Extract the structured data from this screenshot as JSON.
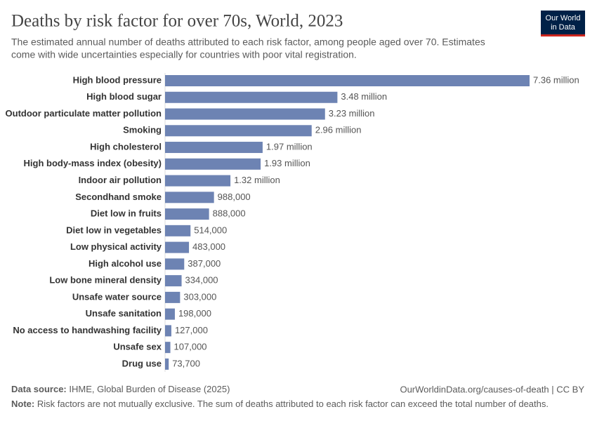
{
  "chart_data": {
    "type": "bar",
    "orientation": "horizontal",
    "title": "Deaths by risk factor for over 70s, World, 2023",
    "subtitle_lines": [
      "The estimated annual number of deaths attributed to each risk factor, among people aged over 70. Estimates",
      "come with wide uncertainties especially for countries with poor vital registration."
    ],
    "logo_lines": [
      "Our World",
      "in Data"
    ],
    "categories": [
      "High blood pressure",
      "High blood sugar",
      "Outdoor particulate matter pollution",
      "Smoking",
      "High cholesterol",
      "High body-mass index (obesity)",
      "Indoor air pollution",
      "Secondhand smoke",
      "Diet low in fruits",
      "Diet low in vegetables",
      "Low physical activity",
      "High alcohol use",
      "Low bone mineral density",
      "Unsafe water source",
      "Unsafe sanitation",
      "No access to handwashing facility",
      "Unsafe sex",
      "Drug use"
    ],
    "values": [
      7360000,
      3480000,
      3230000,
      2960000,
      1970000,
      1930000,
      1320000,
      988000,
      888000,
      514000,
      483000,
      387000,
      334000,
      303000,
      198000,
      127000,
      107000,
      73700
    ],
    "value_labels": [
      "7.36 million",
      "3.48 million",
      "3.23 million",
      "2.96 million",
      "1.97 million",
      "1.93 million",
      "1.32 million",
      "988,000",
      "888,000",
      "514,000",
      "483,000",
      "387,000",
      "334,000",
      "303,000",
      "198,000",
      "127,000",
      "107,000",
      "73,700"
    ],
    "color": "#6d83b3",
    "source_label": "Data source:",
    "source": "IHME, Global Burden of Disease (2025)",
    "url": "OurWorldinData.org/causes-of-death | CC BY",
    "note_label": "Note:",
    "note": "Risk factors are not mutually exclusive. The sum of deaths attributed to each risk factor can exceed the total number of deaths."
  }
}
